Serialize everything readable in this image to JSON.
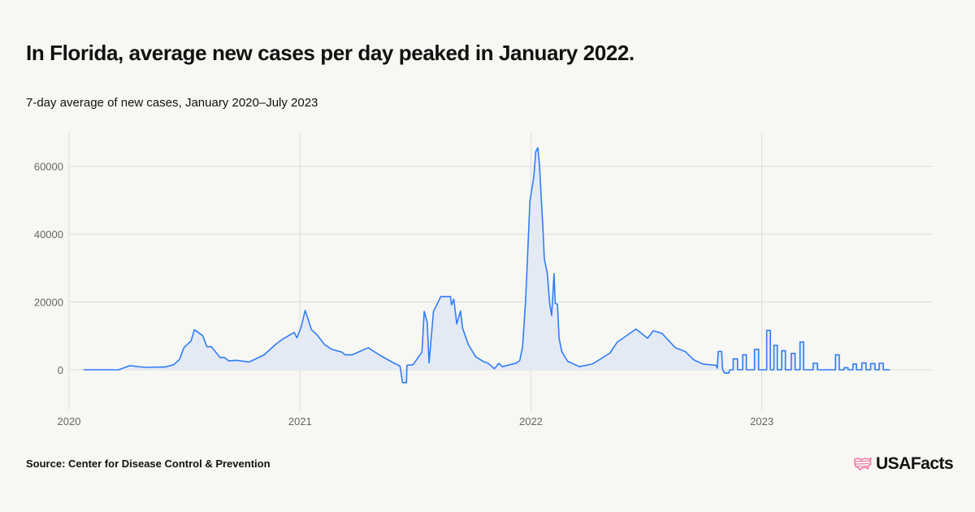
{
  "title": "In Florida, average new cases per day peaked in January 2022.",
  "subtitle": "7-day average of new cases, January 2020–July 2023",
  "source": "Source: Center for Disease Control & Prevention",
  "logo": {
    "text": "USAFacts",
    "icon": "us-map-flag-icon",
    "color": "#f0609a"
  },
  "chart_data": {
    "type": "area",
    "title": "7-day average of new cases, January 2020–July 2023",
    "xlabel": "",
    "ylabel": "",
    "xlim": [
      2020.0,
      2023.74
    ],
    "ylim": [
      -12000,
      70000
    ],
    "grid": true,
    "line_color": "#2f7df6",
    "fill_color": "#e4eaf4",
    "x_ticks": [
      {
        "value": 2020,
        "label": "2020"
      },
      {
        "value": 2021,
        "label": "2021"
      },
      {
        "value": 2022,
        "label": "2022"
      },
      {
        "value": 2023,
        "label": "2023"
      }
    ],
    "y_ticks": [
      {
        "value": 0,
        "label": "0"
      },
      {
        "value": 20000,
        "label": "20000"
      },
      {
        "value": 40000,
        "label": "40000"
      },
      {
        "value": 60000,
        "label": "60000"
      }
    ],
    "series": [
      {
        "name": "7-day average of new cases",
        "points": [
          [
            2020.063,
            0
          ],
          [
            2020.214,
            0
          ],
          [
            2020.264,
            1200
          ],
          [
            2020.327,
            700
          ],
          [
            2020.415,
            800
          ],
          [
            2020.453,
            1500
          ],
          [
            2020.478,
            3000
          ],
          [
            2020.497,
            6500
          ],
          [
            2020.528,
            8500
          ],
          [
            2020.543,
            11800
          ],
          [
            2020.579,
            10000
          ],
          [
            2020.597,
            6800
          ],
          [
            2020.616,
            6800
          ],
          [
            2020.654,
            3600
          ],
          [
            2020.673,
            3600
          ],
          [
            2020.692,
            2600
          ],
          [
            2020.723,
            2800
          ],
          [
            2020.78,
            2300
          ],
          [
            2020.843,
            4300
          ],
          [
            2020.893,
            7400
          ],
          [
            2020.924,
            9000
          ],
          [
            2020.975,
            11000
          ],
          [
            2020.987,
            9400
          ],
          [
            2021.006,
            12800
          ],
          [
            2021.022,
            17500
          ],
          [
            2021.031,
            15800
          ],
          [
            2021.05,
            11800
          ],
          [
            2021.075,
            10200
          ],
          [
            2021.107,
            7400
          ],
          [
            2021.138,
            6000
          ],
          [
            2021.182,
            5200
          ],
          [
            2021.195,
            4400
          ],
          [
            2021.226,
            4400
          ],
          [
            2021.295,
            6500
          ],
          [
            2021.345,
            4300
          ],
          [
            2021.408,
            1900
          ],
          [
            2021.433,
            1100
          ],
          [
            2021.444,
            -3800
          ],
          [
            2021.461,
            -3800
          ],
          [
            2021.463,
            1300
          ],
          [
            2021.49,
            1500
          ],
          [
            2021.528,
            5200
          ],
          [
            2021.538,
            17200
          ],
          [
            2021.551,
            14000
          ],
          [
            2021.559,
            2000
          ],
          [
            2021.578,
            17200
          ],
          [
            2021.61,
            21600
          ],
          [
            2021.651,
            21600
          ],
          [
            2021.656,
            19200
          ],
          [
            2021.666,
            20800
          ],
          [
            2021.679,
            13500
          ],
          [
            2021.695,
            17300
          ],
          [
            2021.704,
            12300
          ],
          [
            2021.729,
            7400
          ],
          [
            2021.761,
            3800
          ],
          [
            2021.798,
            2300
          ],
          [
            2021.813,
            2000
          ],
          [
            2021.842,
            300
          ],
          [
            2021.861,
            1900
          ],
          [
            2021.876,
            900
          ],
          [
            2021.939,
            2000
          ],
          [
            2021.952,
            2800
          ],
          [
            2021.964,
            6800
          ],
          [
            2021.977,
            20400
          ],
          [
            2021.996,
            49900
          ],
          [
            2022.012,
            56700
          ],
          [
            2022.021,
            64300
          ],
          [
            2022.03,
            65500
          ],
          [
            2022.037,
            60300
          ],
          [
            2022.053,
            40400
          ],
          [
            2022.058,
            32800
          ],
          [
            2022.071,
            28400
          ],
          [
            2022.081,
            19600
          ],
          [
            2022.09,
            16000
          ],
          [
            2022.1,
            28400
          ],
          [
            2022.105,
            19600
          ],
          [
            2022.115,
            19300
          ],
          [
            2022.122,
            9300
          ],
          [
            2022.134,
            5300
          ],
          [
            2022.159,
            2500
          ],
          [
            2022.21,
            900
          ],
          [
            2022.266,
            1700
          ],
          [
            2022.342,
            4900
          ],
          [
            2022.373,
            8100
          ],
          [
            2022.43,
            10800
          ],
          [
            2022.455,
            12000
          ],
          [
            2022.505,
            9300
          ],
          [
            2022.53,
            11500
          ],
          [
            2022.568,
            10700
          ],
          [
            2022.625,
            6500
          ],
          [
            2022.669,
            5300
          ],
          [
            2022.706,
            2900
          ],
          [
            2022.744,
            1700
          ],
          [
            2022.801,
            1300
          ],
          [
            2022.807,
            500
          ],
          [
            2022.811,
            5400
          ],
          [
            2022.826,
            5400
          ],
          [
            2022.83,
            0
          ],
          [
            2022.839,
            -1000
          ],
          [
            2022.857,
            -1000
          ],
          [
            2022.861,
            0
          ],
          [
            2022.876,
            0
          ],
          [
            2022.876,
            3200
          ],
          [
            2022.895,
            3200
          ],
          [
            2022.895,
            0
          ],
          [
            2022.917,
            0
          ],
          [
            2022.917,
            4400
          ],
          [
            2022.933,
            4400
          ],
          [
            2022.933,
            0
          ],
          [
            2022.968,
            0
          ],
          [
            2022.968,
            6000
          ],
          [
            2022.986,
            6000
          ],
          [
            2022.986,
            0
          ],
          [
            2023.021,
            0
          ],
          [
            2023.021,
            11600
          ],
          [
            2023.037,
            11600
          ],
          [
            2023.037,
            0
          ],
          [
            2023.052,
            0
          ],
          [
            2023.052,
            7200
          ],
          [
            2023.067,
            7200
          ],
          [
            2023.067,
            0
          ],
          [
            2023.086,
            0
          ],
          [
            2023.086,
            5600
          ],
          [
            2023.102,
            5600
          ],
          [
            2023.102,
            0
          ],
          [
            2023.127,
            0
          ],
          [
            2023.127,
            4800
          ],
          [
            2023.144,
            4800
          ],
          [
            2023.144,
            0
          ],
          [
            2023.165,
            0
          ],
          [
            2023.165,
            8200
          ],
          [
            2023.181,
            8200
          ],
          [
            2023.181,
            0
          ],
          [
            2023.222,
            0
          ],
          [
            2023.222,
            1900
          ],
          [
            2023.241,
            1900
          ],
          [
            2023.241,
            0
          ],
          [
            2023.319,
            0
          ],
          [
            2023.319,
            4400
          ],
          [
            2023.335,
            4400
          ],
          [
            2023.335,
            0
          ],
          [
            2023.356,
            0
          ],
          [
            2023.356,
            600
          ],
          [
            2023.373,
            600
          ],
          [
            2023.373,
            0
          ],
          [
            2023.394,
            0
          ],
          [
            2023.394,
            1700
          ],
          [
            2023.41,
            1700
          ],
          [
            2023.41,
            0
          ],
          [
            2023.433,
            0
          ],
          [
            2023.433,
            2000
          ],
          [
            2023.451,
            2000
          ],
          [
            2023.451,
            0
          ],
          [
            2023.471,
            0
          ],
          [
            2023.471,
            1800
          ],
          [
            2023.49,
            1800
          ],
          [
            2023.49,
            0
          ],
          [
            2023.508,
            0
          ],
          [
            2023.508,
            1900
          ],
          [
            2023.526,
            1900
          ],
          [
            2023.526,
            0
          ],
          [
            2023.555,
            0
          ]
        ]
      }
    ]
  }
}
